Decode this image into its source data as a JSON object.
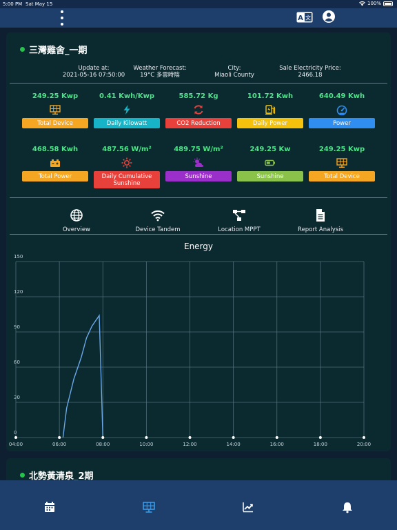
{
  "status_bar": {
    "time": "5:00 PM",
    "date": "Sat May 15",
    "battery": "100%"
  },
  "header": {
    "menu_icon": "more-vertical-icon",
    "translate_icon": "translate-icon",
    "account_icon": "account-icon"
  },
  "site1": {
    "name": "三灣雞舍_一期",
    "status_color": "#27c24c",
    "update_label": "Update at:",
    "update_value": "2021-05-16 07:50:00",
    "weather_label": "Weather Forecast:",
    "weather_value": "19°C 多雲時陰",
    "city_label": "City:",
    "city_value": "Miaoli County",
    "price_label": "Sale Electricity Price:",
    "price_value": "2466.18",
    "metrics": [
      {
        "value": "249.25 Kwp",
        "label": "Total Device",
        "icon": "solar-panel-icon",
        "color": "#f5a623"
      },
      {
        "value": "0.41 Kwh/Kwp",
        "label": "Daily Kilowatt",
        "icon": "lightning-icon",
        "color": "#17b4c7"
      },
      {
        "value": "585.72 Kg",
        "label": "CO2 Reduction",
        "icon": "recycle-icon",
        "color": "#e8413c"
      },
      {
        "value": "101.72 Kwh",
        "label": "Daily Power",
        "icon": "ev-charger-icon",
        "color": "#f4c20d"
      },
      {
        "value": "640.49 Kwh",
        "label": "Power",
        "icon": "gauge-icon",
        "color": "#2f8ef0"
      },
      {
        "value": "468.58 Kwh",
        "label": "Total Power",
        "icon": "car-battery-icon",
        "color": "#f5a623"
      },
      {
        "value": "487.56 W/m²",
        "label": "Daily Cumulative Sunshine",
        "icon": "sun-icon",
        "color": "#e8413c"
      },
      {
        "value": "489.75 W/m²",
        "label": "Sunshine",
        "icon": "partly-cloudy-icon",
        "color": "#9b2fc9"
      },
      {
        "value": "249.25 Kw",
        "label": "Sunshine",
        "icon": "battery-icon",
        "color": "#8bc34a"
      },
      {
        "value": "249.25 Kwp",
        "label": "Total Device",
        "icon": "solar-panel-icon",
        "color": "#f5a623"
      }
    ],
    "nav": [
      {
        "label": "Overview",
        "icon": "globe-icon"
      },
      {
        "label": "Device Tandem",
        "icon": "wifi-icon"
      },
      {
        "label": "Location MPPT",
        "icon": "network-icon"
      },
      {
        "label": "Report Analysis",
        "icon": "document-icon"
      }
    ]
  },
  "chart_data": {
    "type": "line",
    "title": "Energy",
    "xlabel": "",
    "ylabel": "",
    "x_ticks": [
      "04:00",
      "06:00",
      "08:00",
      "10:00",
      "12:00",
      "14:00",
      "16:00",
      "18:00",
      "20:00"
    ],
    "y_ticks": [
      0,
      30,
      60,
      90,
      120,
      150
    ],
    "xlim": [
      "04:00",
      "20:00"
    ],
    "ylim": [
      0,
      150
    ],
    "grid": true,
    "line_color": "#6aa8e8",
    "series": [
      {
        "x": [
          "06:10",
          "06:20",
          "06:40",
          "07:00",
          "07:15",
          "07:30",
          "07:50",
          "08:00"
        ],
        "y": [
          0,
          25,
          50,
          68,
          85,
          95,
          104,
          0
        ]
      }
    ],
    "markers_x": [
      "04:00",
      "06:00",
      "08:00",
      "10:00",
      "12:00",
      "14:00",
      "16:00",
      "18:00",
      "20:00"
    ]
  },
  "site2": {
    "name": "北勢黃清泉_2期",
    "status_color": "#27c24c"
  },
  "tabs": [
    {
      "icon": "calendar-icon",
      "active": false
    },
    {
      "icon": "solar-panel-icon",
      "active": true
    },
    {
      "icon": "trending-up-icon",
      "active": false
    },
    {
      "icon": "bell-icon",
      "active": false
    }
  ]
}
